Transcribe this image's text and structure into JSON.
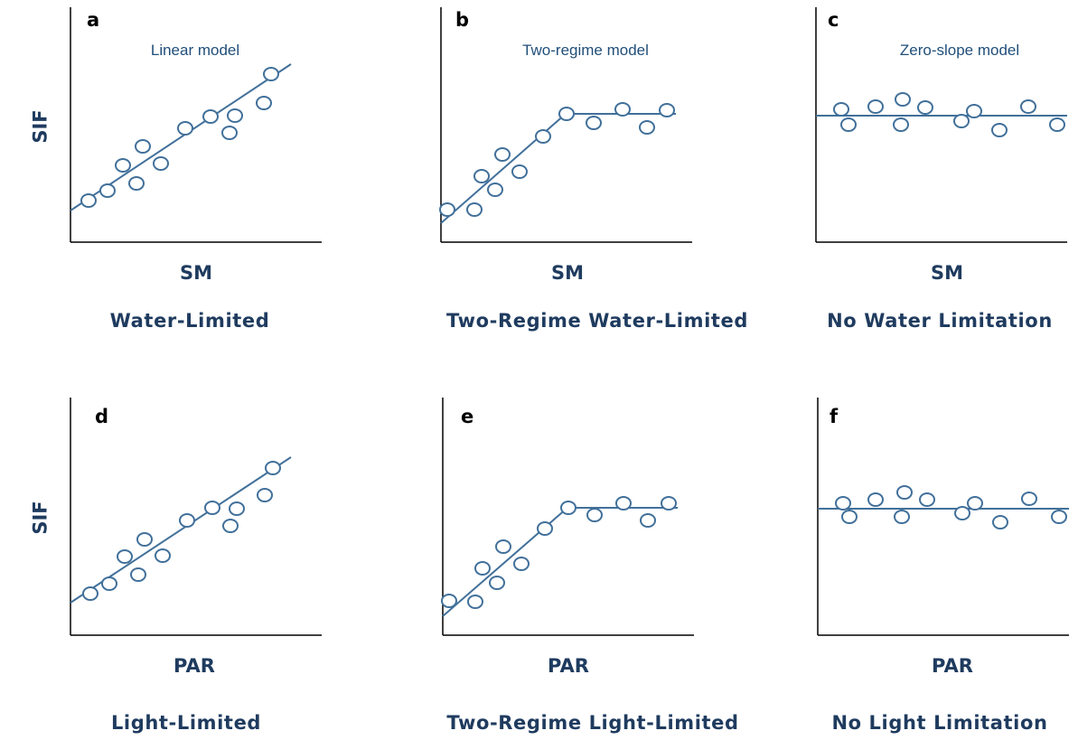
{
  "colors": {
    "axis": "#000000",
    "marks": "#41709a",
    "text": "#1f3b5f"
  },
  "row1": {
    "ylabel": "SIF",
    "panels": [
      {
        "letter": "a",
        "model": "Linear model",
        "xlabel": "SM",
        "caption": "Water-Limited"
      },
      {
        "letter": "b",
        "model": "Two-regime model",
        "xlabel": "SM",
        "caption": "Two-Regime Water-Limited"
      },
      {
        "letter": "c",
        "model": "Zero-slope model",
        "xlabel": "SM",
        "caption": "No Water Limitation"
      }
    ]
  },
  "row2": {
    "ylabel": "SIF",
    "panels": [
      {
        "letter": "d",
        "model": "",
        "xlabel": "PAR",
        "caption": "Light-Limited"
      },
      {
        "letter": "e",
        "model": "",
        "xlabel": "PAR",
        "caption": "Two-Regime Light-Limited"
      },
      {
        "letter": "f",
        "model": "",
        "xlabel": "PAR",
        "caption": "No Light Limitation"
      }
    ]
  }
}
